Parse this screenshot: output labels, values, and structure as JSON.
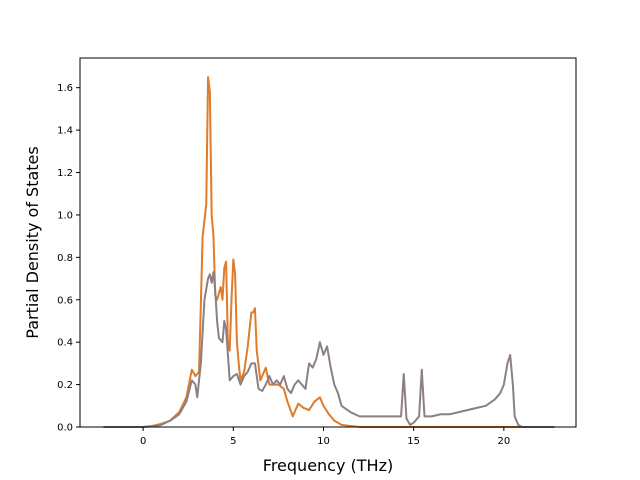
{
  "chart_data": {
    "type": "line",
    "xlabel": "Frequency (THz)",
    "ylabel": "Partial Density of States",
    "xlim": [
      -3.5,
      24.0
    ],
    "ylim": [
      0.0,
      1.74
    ],
    "xticks": [
      0,
      5,
      10,
      15,
      20
    ],
    "yticks": [
      0.0,
      0.2,
      0.4,
      0.6,
      0.8,
      1.0,
      1.2,
      1.4,
      1.6
    ],
    "xtick_labels": [
      "0",
      "5",
      "10",
      "15",
      "20"
    ],
    "ytick_labels": [
      "0.0",
      "0.2",
      "0.4",
      "0.6",
      "0.8",
      "1.0",
      "1.2",
      "1.4",
      "1.6"
    ],
    "grid": false,
    "legend": "none",
    "series": [
      {
        "color": "#e07b2a",
        "x": [
          -2.2,
          0.0,
          0.5,
          1.0,
          1.5,
          2.0,
          2.4,
          2.7,
          2.9,
          3.1,
          3.3,
          3.5,
          3.6,
          3.7,
          3.8,
          3.9,
          4.0,
          4.1,
          4.3,
          4.4,
          4.5,
          4.6,
          4.7,
          4.8,
          4.9,
          5.0,
          5.1,
          5.2,
          5.3,
          5.4,
          5.6,
          5.8,
          6.0,
          6.1,
          6.2,
          6.3,
          6.5,
          6.6,
          6.8,
          7.0,
          7.2,
          7.5,
          7.8,
          8.0,
          8.3,
          8.6,
          8.9,
          9.2,
          9.5,
          9.8,
          10.0,
          10.3,
          10.6,
          11.0,
          11.5,
          12.0,
          13.0,
          14.0,
          15.0,
          16.0,
          18.0,
          20.0,
          21.0,
          22.8
        ],
        "y": [
          0.0,
          0.0,
          0.005,
          0.015,
          0.03,
          0.07,
          0.14,
          0.27,
          0.24,
          0.26,
          0.9,
          1.05,
          1.65,
          1.58,
          1.0,
          0.9,
          0.62,
          0.6,
          0.66,
          0.6,
          0.75,
          0.78,
          0.4,
          0.36,
          0.6,
          0.79,
          0.72,
          0.4,
          0.3,
          0.22,
          0.26,
          0.38,
          0.54,
          0.54,
          0.56,
          0.36,
          0.22,
          0.24,
          0.28,
          0.2,
          0.2,
          0.2,
          0.18,
          0.12,
          0.05,
          0.11,
          0.09,
          0.08,
          0.12,
          0.14,
          0.1,
          0.06,
          0.03,
          0.01,
          0.005,
          0.0,
          0.0,
          0.0,
          0.0,
          0.0,
          0.0,
          0.0,
          0.0,
          0.0
        ]
      },
      {
        "color": "#8c7f86",
        "x": [
          -2.2,
          0.0,
          0.5,
          1.0,
          1.5,
          2.0,
          2.4,
          2.7,
          2.9,
          3.0,
          3.2,
          3.4,
          3.6,
          3.7,
          3.8,
          3.9,
          4.0,
          4.1,
          4.2,
          4.4,
          4.5,
          4.6,
          4.8,
          5.0,
          5.2,
          5.4,
          5.6,
          5.8,
          6.0,
          6.2,
          6.4,
          6.6,
          6.8,
          7.0,
          7.2,
          7.4,
          7.6,
          7.8,
          8.0,
          8.2,
          8.4,
          8.6,
          8.8,
          9.0,
          9.2,
          9.4,
          9.6,
          9.8,
          10.0,
          10.2,
          10.4,
          10.6,
          10.8,
          11.0,
          11.5,
          12.0,
          13.0,
          14.0,
          14.3,
          14.45,
          14.6,
          14.8,
          15.0,
          15.3,
          15.45,
          15.6,
          16.0,
          16.5,
          17.0,
          17.5,
          18.0,
          18.5,
          19.0,
          19.5,
          19.8,
          20.0,
          20.2,
          20.35,
          20.5,
          20.6,
          20.8,
          21.0,
          22.8
        ],
        "y": [
          0.0,
          0.0,
          0.003,
          0.01,
          0.03,
          0.06,
          0.12,
          0.22,
          0.2,
          0.14,
          0.3,
          0.6,
          0.7,
          0.72,
          0.68,
          0.73,
          0.64,
          0.5,
          0.42,
          0.4,
          0.5,
          0.46,
          0.22,
          0.24,
          0.25,
          0.2,
          0.24,
          0.26,
          0.3,
          0.3,
          0.18,
          0.17,
          0.2,
          0.24,
          0.2,
          0.22,
          0.2,
          0.24,
          0.18,
          0.16,
          0.2,
          0.22,
          0.2,
          0.18,
          0.3,
          0.28,
          0.32,
          0.4,
          0.34,
          0.38,
          0.28,
          0.2,
          0.16,
          0.1,
          0.07,
          0.05,
          0.05,
          0.05,
          0.05,
          0.25,
          0.04,
          0.01,
          0.02,
          0.05,
          0.27,
          0.05,
          0.05,
          0.06,
          0.06,
          0.07,
          0.08,
          0.09,
          0.1,
          0.13,
          0.16,
          0.2,
          0.3,
          0.34,
          0.2,
          0.05,
          0.01,
          0.0,
          0.0
        ]
      }
    ]
  }
}
